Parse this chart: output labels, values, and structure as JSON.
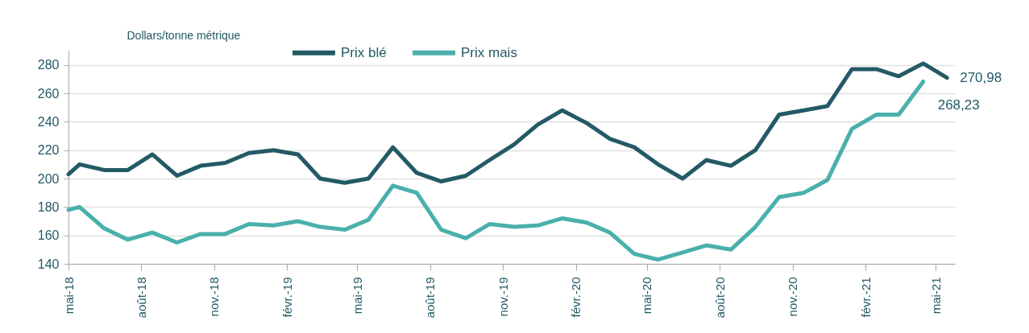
{
  "chart_data": {
    "type": "line",
    "ylabel": "Dollars/tonne métrique",
    "x": [
      "2018-05-01",
      "2018-05-15",
      "2018-06-15",
      "2018-07-15",
      "2018-08-15",
      "2018-09-15",
      "2018-10-15",
      "2018-11-15",
      "2018-12-15",
      "2019-01-15",
      "2019-02-15",
      "2019-03-15",
      "2019-04-15",
      "2019-05-15",
      "2019-06-15",
      "2019-07-15",
      "2019-08-15",
      "2019-09-15",
      "2019-10-15",
      "2019-11-15",
      "2019-12-15",
      "2020-01-15",
      "2020-02-15",
      "2020-03-15",
      "2020-04-15",
      "2020-05-15",
      "2020-06-15",
      "2020-07-15",
      "2020-08-15",
      "2020-09-15",
      "2020-10-15",
      "2020-11-15",
      "2020-12-15",
      "2021-01-15",
      "2021-02-15",
      "2021-03-15",
      "2021-04-15",
      "2021-05-15"
    ],
    "series": [
      {
        "name": "Prix blé",
        "color": "#235a65",
        "values": [
          203,
          210,
          206,
          206,
          217,
          202,
          209,
          211,
          218,
          220,
          217,
          200,
          197,
          200,
          222,
          204,
          198,
          202,
          213,
          224,
          238,
          248,
          239,
          228,
          222,
          210,
          200,
          213,
          209,
          220,
          245,
          248,
          251,
          277,
          277,
          272,
          281,
          270.98
        ],
        "value_labels": [
          null,
          null,
          null,
          null,
          null,
          null,
          null,
          null,
          null,
          null,
          null,
          null,
          null,
          null,
          null,
          null,
          null,
          null,
          null,
          null,
          null,
          null,
          null,
          null,
          null,
          null,
          null,
          null,
          null,
          null,
          null,
          null,
          null,
          null,
          null,
          null,
          null,
          "270,98"
        ]
      },
      {
        "name": "Prix mais",
        "color": "#4ab0ab",
        "values": [
          178,
          180,
          165,
          157,
          162,
          155,
          161,
          161,
          168,
          167,
          170,
          166,
          164,
          171,
          195,
          190,
          164,
          158,
          168,
          166,
          167,
          172,
          169,
          162,
          147,
          143,
          148,
          153,
          150,
          166,
          187,
          190,
          199,
          235,
          245,
          245,
          268.23,
          null
        ],
        "value_labels": [
          null,
          null,
          null,
          null,
          null,
          null,
          null,
          null,
          null,
          null,
          null,
          null,
          null,
          null,
          null,
          null,
          null,
          null,
          null,
          null,
          null,
          null,
          null,
          null,
          null,
          null,
          null,
          null,
          null,
          null,
          null,
          null,
          null,
          null,
          null,
          null,
          "268,23",
          null
        ]
      }
    ],
    "xlim": [
      "2018-05-01",
      "2021-05-25"
    ],
    "xticks": [
      {
        "value": "2018-05-01",
        "label": "mai-18"
      },
      {
        "value": "2018-08-01",
        "label": "août-18"
      },
      {
        "value": "2018-11-01",
        "label": "nov.-18"
      },
      {
        "value": "2019-02-01",
        "label": "févr.-19"
      },
      {
        "value": "2019-05-01",
        "label": "mai-19"
      },
      {
        "value": "2019-08-01",
        "label": "août-19"
      },
      {
        "value": "2019-11-01",
        "label": "nov.-19"
      },
      {
        "value": "2020-02-01",
        "label": "févr.-20"
      },
      {
        "value": "2020-05-01",
        "label": "mai-20"
      },
      {
        "value": "2020-08-01",
        "label": "août-20"
      },
      {
        "value": "2020-11-01",
        "label": "nov.-20"
      },
      {
        "value": "2021-02-01",
        "label": "févr.-21"
      },
      {
        "value": "2021-05-01",
        "label": "mai-21"
      }
    ],
    "ylim": [
      140,
      290
    ],
    "yticks": [
      140,
      160,
      180,
      200,
      220,
      240,
      260,
      280
    ],
    "grid": "y",
    "legend": "top",
    "marker": "none",
    "line_style": "solid"
  }
}
